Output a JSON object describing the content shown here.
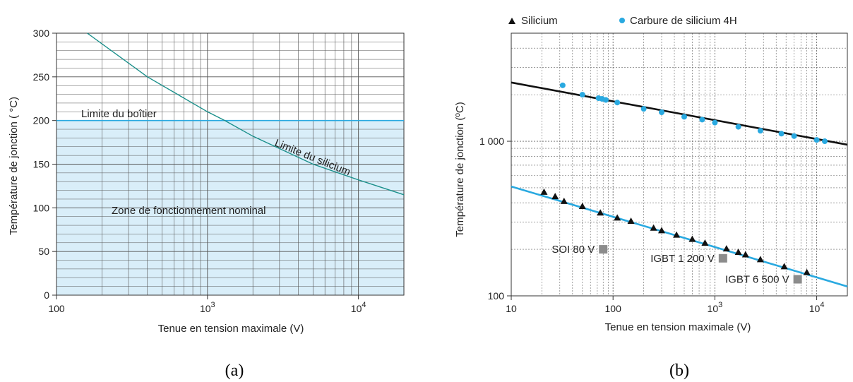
{
  "charts": [
    {
      "caption": "(a)",
      "chart_data": {
        "type": "line",
        "xlabel": "Tenue en tension maximale (V)",
        "ylabel": "Température de jonction ( °C)",
        "xscale": "log",
        "xlim": [
          100,
          20000
        ],
        "ylim": [
          0,
          300
        ],
        "xticks": [
          {
            "value": 100,
            "base": "100",
            "exp": ""
          },
          {
            "value": 1000,
            "base": "10",
            "exp": "3"
          },
          {
            "value": 10000,
            "base": "10",
            "exp": "4"
          }
        ],
        "yticks": [
          0,
          50,
          100,
          150,
          200,
          250,
          300
        ],
        "grid": true,
        "series": [
          {
            "name": "Limite du boîtier",
            "color": "#29a9e0",
            "x": [
              100,
              20000
            ],
            "y": [
              200,
              200
            ]
          },
          {
            "name": "Limite du silicium",
            "color": "#1a8f8a",
            "x": [
              160,
              400,
              1000,
              1300,
              2000,
              5000,
              10000,
              20000
            ],
            "y": [
              300,
              250,
              210,
              200,
              182,
              150,
              132,
              115
            ]
          }
        ],
        "shaded_region": {
          "label": "Zone de fonctionnement nominal",
          "color": "#d9eef9"
        }
      }
    },
    {
      "caption": "(b)",
      "chart_data": {
        "type": "scatter",
        "xlabel": "Tenue en tension maximale (V)",
        "ylabel": "Température de jonction (ºC)",
        "xscale": "log",
        "yscale": "log",
        "xlim": [
          10,
          20000
        ],
        "ylim": [
          100,
          5000
        ],
        "xticks": [
          {
            "value": 10,
            "base": "10",
            "exp": ""
          },
          {
            "value": 100,
            "base": "100",
            "exp": ""
          },
          {
            "value": 1000,
            "base": "10",
            "exp": "3"
          },
          {
            "value": 10000,
            "base": "10",
            "exp": "4"
          }
        ],
        "yticks": [
          {
            "value": 100,
            "label": "100"
          },
          {
            "value": 1000,
            "label": "1 000"
          }
        ],
        "grid": true,
        "legend": {
          "position": "top",
          "entries": [
            {
              "name": "Silicium",
              "marker": "triangle",
              "color": "#111111"
            },
            {
              "name": "Carbure de silicium 4H",
              "marker": "circle",
              "color": "#29a9e0"
            }
          ]
        },
        "series": [
          {
            "name": "Carbure de silicium 4H",
            "marker": "circle",
            "color": "#29a9e0",
            "x": [
              32,
              50,
              72,
              78,
              85,
              110,
              200,
              300,
              500,
              750,
              1000,
              1700,
              2800,
              4500,
              6000,
              10000,
              12000
            ],
            "y": [
              2300,
              2000,
              1900,
              1880,
              1850,
              1780,
              1620,
              1540,
              1440,
              1380,
              1320,
              1240,
              1170,
              1120,
              1080,
              1020,
              1000
            ]
          },
          {
            "name": "Silicium",
            "marker": "triangle",
            "color": "#111111",
            "x": [
              21,
              27,
              33,
              50,
              75,
              110,
              150,
              250,
              300,
              420,
              600,
              800,
              1300,
              1700,
              2000,
              2800,
              4800,
              8000
            ],
            "y": [
              470,
              440,
              410,
              380,
              345,
              320,
              305,
              275,
              265,
              248,
              233,
              220,
              202,
              192,
              185,
              172,
              155,
              142
            ]
          }
        ],
        "trend_lines": [
          {
            "name": "Carbure de silicium 4H",
            "color": "#111111",
            "x": [
              10,
              20000
            ],
            "y": [
              2400,
              950
            ]
          },
          {
            "name": "Silicium",
            "color": "#29a9e0",
            "x": [
              10,
              20000
            ],
            "y": [
              510,
              115
            ]
          }
        ],
        "annotations": [
          {
            "text": "SOI 80 V",
            "x": 80,
            "y": 200
          },
          {
            "text": "IGBT 1 200 V",
            "x": 1200,
            "y": 175
          },
          {
            "text": "IGBT 6 500 V",
            "x": 6500,
            "y": 128
          }
        ]
      }
    }
  ]
}
